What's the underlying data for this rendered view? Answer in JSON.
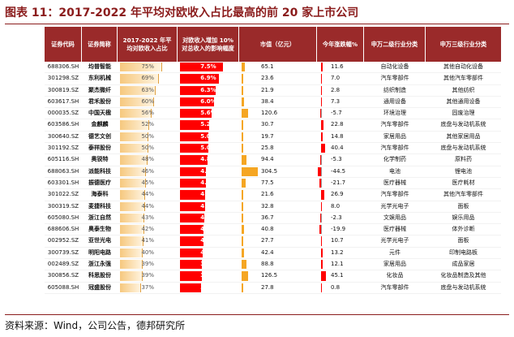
{
  "title": "图表 11：2017-2022 年平均对欧收入占比最高的前 20 家上市公司",
  "source": "资料来源：Wind，公司公告，德邦研究所",
  "colors": {
    "title": "#8b1c1c",
    "header_bg": "#9a2a2a",
    "share_bar": "#f6c87e",
    "increase_bar": "#ff0000",
    "market_value_bar": "#f5a623",
    "change_bar": "#ff0000"
  },
  "headers": {
    "code": "证券代码",
    "name": "证券简称",
    "avg_share": "2017-2022 年平均对欧收入占比",
    "increase": "对欧收入增加 10%对总收入的影响幅度",
    "market_value": "市值（亿元）",
    "ytd_change": "今年涨跌幅%",
    "sw_l2": "申万二级行业分类",
    "sw_l3": "申万三级行业分类"
  },
  "rows": [
    {
      "code": "688306.SH",
      "name": "均普智能",
      "share": "75%",
      "inc": "7.5%",
      "mv": "65.1",
      "chg": "11.6",
      "l2": "自动化设备",
      "l3": "其他自动化设备"
    },
    {
      "code": "301298.SZ",
      "name": "东利机械",
      "share": "69%",
      "inc": "6.9%",
      "mv": "23.6",
      "chg": "7.0",
      "l2": "汽车零部件",
      "l3": "其他汽车零部件"
    },
    {
      "code": "300819.SZ",
      "name": "聚杰微纤",
      "share": "63%",
      "inc": "6.3%",
      "mv": "21.9",
      "chg": "2.8",
      "l2": "纺织制造",
      "l3": "其他纺织"
    },
    {
      "code": "603617.SH",
      "name": "君禾股份",
      "share": "60%",
      "inc": "6.0%",
      "mv": "38.4",
      "chg": "7.3",
      "l2": "通用设备",
      "l3": "其他通用设备"
    },
    {
      "code": "000035.SZ",
      "name": "中国天楹",
      "share": "56%",
      "inc": "5.6%",
      "mv": "120.6",
      "chg": "-5.7",
      "l2": "环境治理",
      "l3": "固废治理"
    },
    {
      "code": "603586.SH",
      "name": "金麒麟",
      "share": "52%",
      "inc": "5.2%",
      "mv": "30.7",
      "chg": "22.8",
      "l2": "汽车零部件",
      "l3": "底盘与发动机系统"
    },
    {
      "code": "300640.SZ",
      "name": "德艺文创",
      "share": "50%",
      "inc": "5.0%",
      "mv": "19.7",
      "chg": "14.8",
      "l2": "家居用品",
      "l3": "其他家居用品"
    },
    {
      "code": "301192.SZ",
      "name": "泰祥股份",
      "share": "50%",
      "inc": "5.0%",
      "mv": "25.8",
      "chg": "40.4",
      "l2": "汽车零部件",
      "l3": "底盘与发动机系统"
    },
    {
      "code": "605116.SH",
      "name": "奥锐特",
      "share": "48%",
      "inc": "4.8%",
      "mv": "94.4",
      "chg": "-5.3",
      "l2": "化学制药",
      "l3": "原料药"
    },
    {
      "code": "688063.SH",
      "name": "派能科技",
      "share": "46%",
      "inc": "4.6%",
      "mv": "304.5",
      "chg": "-44.5",
      "l2": "电池",
      "l3": "锂电池"
    },
    {
      "code": "603301.SH",
      "name": "振德医疗",
      "share": "45%",
      "inc": "4.5%",
      "mv": "77.5",
      "chg": "-21.7",
      "l2": "医疗器械",
      "l3": "医疗耗材"
    },
    {
      "code": "301022.SZ",
      "name": "海泰科",
      "share": "44%",
      "inc": "4.4%",
      "mv": "21.6",
      "chg": "26.9",
      "l2": "汽车零部件",
      "l3": "其他汽车零部件"
    },
    {
      "code": "300319.SZ",
      "name": "麦捷科技",
      "share": "44%",
      "inc": "4.4%",
      "mv": "32.8",
      "chg": "8.0",
      "l2": "光学光电子",
      "l3": "面板"
    },
    {
      "code": "605080.SH",
      "name": "浙江自然",
      "share": "43%",
      "inc": "4.3%",
      "mv": "36.7",
      "chg": "-2.3",
      "l2": "文娱用品",
      "l3": "娱乐用品"
    },
    {
      "code": "688606.SH",
      "name": "奥泰生物",
      "share": "42%",
      "inc": "4.2%",
      "mv": "40.8",
      "chg": "-19.9",
      "l2": "医疗器械",
      "l3": "体外诊断"
    },
    {
      "code": "002952.SZ",
      "name": "亚世光电",
      "share": "41%",
      "inc": "4.1%",
      "mv": "27.7",
      "chg": "10.7",
      "l2": "光学光电子",
      "l3": "面板"
    },
    {
      "code": "300739.SZ",
      "name": "明阳电路",
      "share": "40%",
      "inc": "4.0%",
      "mv": "42.4",
      "chg": "13.2",
      "l2": "元件",
      "l3": "印制电路板"
    },
    {
      "code": "002489.SZ",
      "name": "浙江永强",
      "share": "39%",
      "inc": "3.9%",
      "mv": "88.8",
      "chg": "12.1",
      "l2": "家居用品",
      "l3": "成品家居"
    },
    {
      "code": "300856.SZ",
      "name": "科思股份",
      "share": "39%",
      "inc": "3.9%",
      "mv": "126.5",
      "chg": "45.1",
      "l2": "化妆品",
      "l3": "化妆品制造及其他"
    },
    {
      "code": "605088.SH",
      "name": "冠盛股份",
      "share": "37%",
      "inc": "3.7%",
      "mv": "27.8",
      "chg": "0.8",
      "l2": "汽车零部件",
      "l3": "底盘与发动机系统"
    }
  ]
}
